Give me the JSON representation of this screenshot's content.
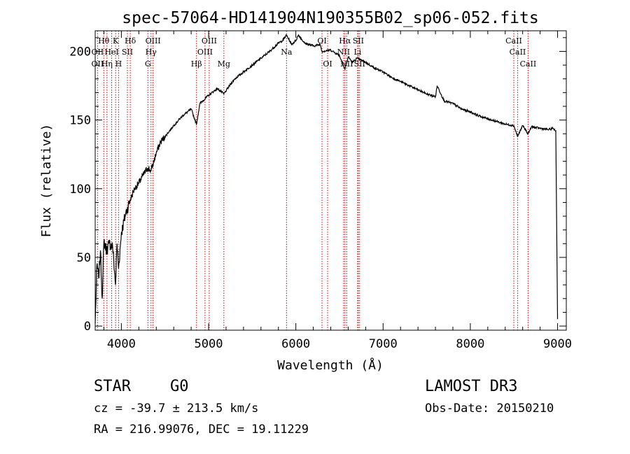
{
  "chart_data": {
    "type": "line",
    "title": "spec-57064-HD141904N190355B02_sp06-052.fits",
    "xlabel": "Wavelength (Å)",
    "ylabel": "Flux (relative)",
    "xlim": [
      3700,
      9100
    ],
    "ylim": [
      -3,
      215
    ],
    "xticks": [
      4000,
      5000,
      6000,
      7000,
      8000,
      9000
    ],
    "yticks": [
      0,
      50,
      100,
      150,
      200
    ],
    "series": [
      {
        "name": "spectrum",
        "color": "#000000",
        "x": [
          3700,
          3720,
          3740,
          3760,
          3780,
          3800,
          3830,
          3860,
          3900,
          3933,
          3950,
          3968,
          4000,
          4050,
          4102,
          4150,
          4200,
          4250,
          4300,
          4340,
          4400,
          4450,
          4500,
          4600,
          4700,
          4800,
          4861,
          4900,
          5000,
          5100,
          5175,
          5250,
          5300,
          5400,
          5500,
          5600,
          5700,
          5800,
          5850,
          5893,
          5950,
          6000,
          6030,
          6100,
          6200,
          6280,
          6300,
          6400,
          6500,
          6563,
          6600,
          6650,
          6700,
          6800,
          6900,
          7000,
          7100,
          7200,
          7300,
          7400,
          7500,
          7600,
          7620,
          7700,
          7800,
          7900,
          8000,
          8100,
          8200,
          8300,
          8400,
          8498,
          8542,
          8600,
          8662,
          8700,
          8800,
          8900,
          8950,
          8980,
          9000
        ],
        "values": [
          2,
          45,
          35,
          55,
          20,
          62,
          55,
          60,
          58,
          30,
          60,
          42,
          68,
          82,
          92,
          100,
          104,
          110,
          115,
          113,
          126,
          134,
          138,
          146,
          153,
          158,
          147,
          162,
          168,
          173,
          169,
          176,
          180,
          185,
          190,
          195,
          200,
          206,
          208,
          212,
          205,
          208,
          212,
          206,
          204,
          205,
          200,
          201,
          197,
          187,
          196,
          192,
          195,
          192,
          188,
          185,
          181,
          178,
          175,
          172,
          169,
          167,
          175,
          164,
          162,
          158,
          156,
          153,
          151,
          149,
          147,
          146,
          138,
          146,
          140,
          145,
          144,
          143,
          144,
          142,
          5
        ]
      }
    ],
    "line_labels": [
      {
        "label": "Hθ",
        "wavelength": 3798,
        "row": 1
      },
      {
        "label": "OII",
        "wavelength": 3727,
        "row": 2
      },
      {
        "label": "OII",
        "wavelength": 3727,
        "row": 3
      },
      {
        "label": "Hη",
        "wavelength": 3835,
        "row": 3
      },
      {
        "label": "HeI",
        "wavelength": 3889,
        "row": 2
      },
      {
        "label": "K",
        "wavelength": 3934,
        "row": 1
      },
      {
        "label": "SII",
        "wavelength": 4069,
        "row": 2
      },
      {
        "label": "H",
        "wavelength": 3968,
        "row": 3
      },
      {
        "label": "Hδ",
        "wavelength": 4102,
        "row": 1
      },
      {
        "label": "OIII",
        "wavelength": 4363,
        "row": 1
      },
      {
        "label": "Hγ",
        "wavelength": 4340,
        "row": 2
      },
      {
        "label": "G",
        "wavelength": 4304,
        "row": 3
      },
      {
        "label": "Hβ",
        "wavelength": 4861,
        "row": 3
      },
      {
        "label": "OIII",
        "wavelength": 4959,
        "row": 2
      },
      {
        "label": "OIII",
        "wavelength": 5007,
        "row": 1
      },
      {
        "label": "Mg",
        "wavelength": 5175,
        "row": 3
      },
      {
        "label": "Na",
        "wavelength": 5893,
        "row": 2
      },
      {
        "label": "OI",
        "wavelength": 6300,
        "row": 1
      },
      {
        "label": "OI",
        "wavelength": 6364,
        "row": 3
      },
      {
        "label": "Hα",
        "wavelength": 6563,
        "row": 1
      },
      {
        "label": "NII",
        "wavelength": 6548,
        "row": 2
      },
      {
        "label": "NII",
        "wavelength": 6583,
        "row": 3
      },
      {
        "label": "SII",
        "wavelength": 6716,
        "row": 1
      },
      {
        "label": "Li",
        "wavelength": 6708,
        "row": 2
      },
      {
        "label": "SII",
        "wavelength": 6731,
        "row": 3
      },
      {
        "label": "CaII",
        "wavelength": 8498,
        "row": 1
      },
      {
        "label": "CaII",
        "wavelength": 8542,
        "row": 2
      },
      {
        "label": "CaII",
        "wavelength": 8662,
        "row": 3
      }
    ],
    "line_marker_wavelengths": [
      3727,
      3798,
      3835,
      3889,
      3934,
      3968,
      4069,
      4102,
      4304,
      4340,
      4363,
      4861,
      4959,
      5007,
      5175,
      5893,
      6300,
      6364,
      6548,
      6563,
      6583,
      6708,
      6716,
      6731,
      8498,
      8542,
      8662
    ],
    "marker_color": "#cc0000"
  },
  "info": {
    "object_type": "STAR",
    "subclass": "G0",
    "survey": "LAMOST DR3",
    "cz": "cz = -39.7 ± 213.5 km/s",
    "obs_date": "Obs-Date: 20150210",
    "coords": "RA = 216.99076, DEC =  19.11229"
  }
}
